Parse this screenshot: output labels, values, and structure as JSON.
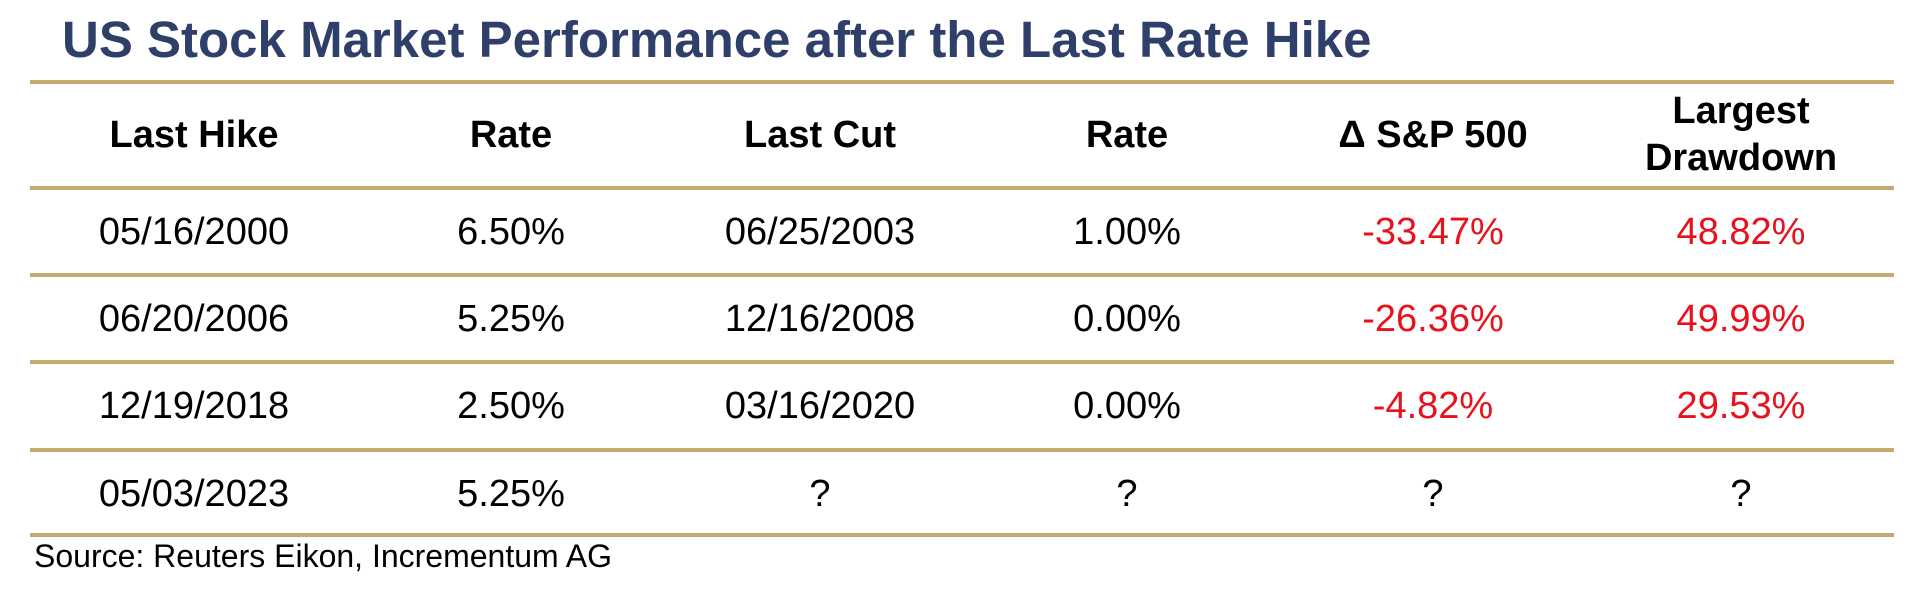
{
  "chart_data": {
    "type": "table",
    "title": "US Stock Market Performance after the Last Rate Hike",
    "columns": [
      "Last Hike",
      "Rate",
      "Last Cut",
      "Rate",
      "Δ S&P 500",
      "Largest\nDrawdown"
    ],
    "rows": [
      [
        "05/16/2000",
        "6.50%",
        "06/25/2003",
        "1.00%",
        "-33.47%",
        "48.82%"
      ],
      [
        "06/20/2006",
        "5.25%",
        "12/16/2008",
        "0.00%",
        "-26.36%",
        "49.99%"
      ],
      [
        "12/19/2018",
        "2.50%",
        "03/16/2020",
        "0.00%",
        "-4.82%",
        "29.53%"
      ],
      [
        "05/03/2023",
        "5.25%",
        "?",
        "?",
        "?",
        "?"
      ]
    ],
    "source": "Source: Reuters Eikon, Incrementum AG"
  },
  "colors": {
    "title": "#2e3f6a",
    "rule": "#c4aa70",
    "negative": "#e8121c",
    "text": "#000000"
  }
}
